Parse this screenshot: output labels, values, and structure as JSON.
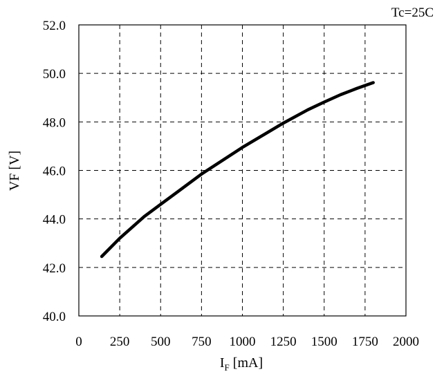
{
  "chart_data": {
    "type": "line",
    "title": "",
    "annotation": "Tc=25C",
    "xlabel": {
      "main": "I",
      "sub": "F",
      "unit": " [mA]"
    },
    "ylabel": "VF [V]",
    "xlim": [
      0,
      2000
    ],
    "ylim": [
      40.0,
      52.0
    ],
    "xticks": [
      0,
      250,
      500,
      750,
      1000,
      1250,
      1500,
      1750,
      2000
    ],
    "xtick_labels": [
      "0",
      "250",
      "500",
      "750",
      "1000",
      "1250",
      "1500",
      "1750",
      "2000"
    ],
    "yticks": [
      40.0,
      42.0,
      44.0,
      46.0,
      48.0,
      50.0,
      52.0
    ],
    "ytick_labels": [
      "40.0",
      "42.0",
      "44.0",
      "46.0",
      "48.0",
      "50.0",
      "52.0"
    ],
    "grid": true,
    "grid_style": "dashed",
    "line_color": "#000000",
    "series": [
      {
        "x": [
          140,
          250,
          400,
          500,
          750,
          1000,
          1250,
          1400,
          1500,
          1600,
          1700,
          1800
        ],
        "values": [
          42.45,
          43.2,
          44.1,
          44.6,
          45.85,
          46.95,
          47.95,
          48.5,
          48.82,
          49.12,
          49.38,
          49.62
        ]
      }
    ]
  }
}
